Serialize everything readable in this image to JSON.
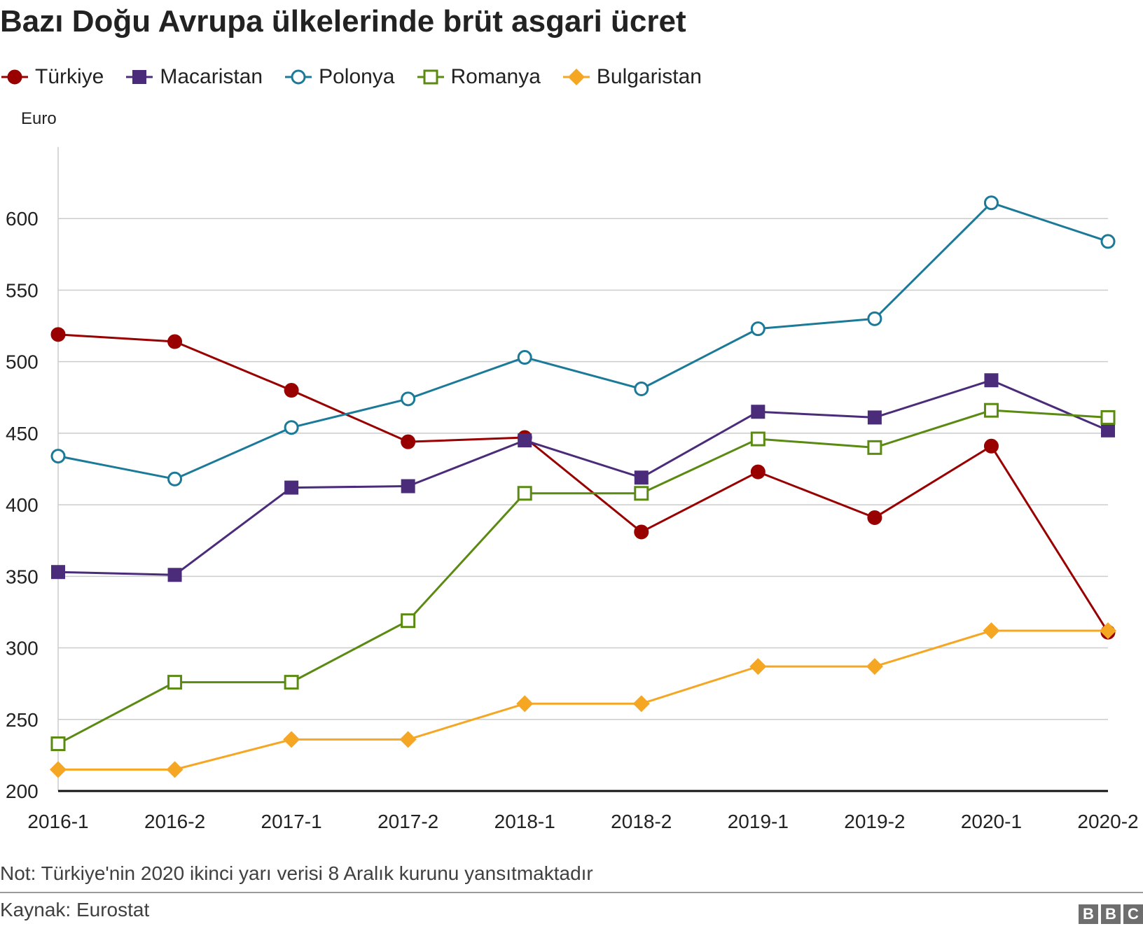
{
  "chart_data": {
    "type": "line",
    "title": "Bazı Doğu Avrupa ülkelerinde brüt asgari ücret",
    "ylabel": "Euro",
    "xlabel": "",
    "categories": [
      "2016-1",
      "2016-2",
      "2017-1",
      "2017-2",
      "2018-1",
      "2018-2",
      "2019-1",
      "2019-2",
      "2020-1",
      "2020-2"
    ],
    "ylim": [
      200,
      650
    ],
    "yticks": [
      200,
      250,
      300,
      350,
      400,
      450,
      500,
      550,
      600
    ],
    "grid": true,
    "legend_position": "top",
    "series": [
      {
        "name": "Türkiye",
        "color": "#990000",
        "marker": "circle-filled",
        "values": [
          519,
          514,
          480,
          444,
          447,
          381,
          423,
          391,
          441,
          311
        ]
      },
      {
        "name": "Macaristan",
        "color": "#4b2c7a",
        "marker": "square-filled",
        "values": [
          353,
          351,
          412,
          413,
          445,
          419,
          465,
          461,
          487,
          452
        ]
      },
      {
        "name": "Polonya",
        "color": "#1c7a99",
        "marker": "circle-open",
        "values": [
          434,
          418,
          454,
          474,
          503,
          481,
          523,
          530,
          611,
          584
        ]
      },
      {
        "name": "Romanya",
        "color": "#5b8a12",
        "marker": "square-open",
        "values": [
          233,
          276,
          276,
          319,
          408,
          408,
          446,
          440,
          466,
          461
        ]
      },
      {
        "name": "Bulgaristan",
        "color": "#f5a623",
        "marker": "diamond-filled",
        "values": [
          215,
          215,
          236,
          236,
          261,
          261,
          287,
          287,
          312,
          312
        ]
      }
    ]
  },
  "note": "Not: Türkiye'nin 2020 ikinci yarı verisi 8 Aralık kurunu yansıtmaktadır",
  "source": "Kaynak: Eurostat",
  "logo": [
    "B",
    "B",
    "C"
  ]
}
